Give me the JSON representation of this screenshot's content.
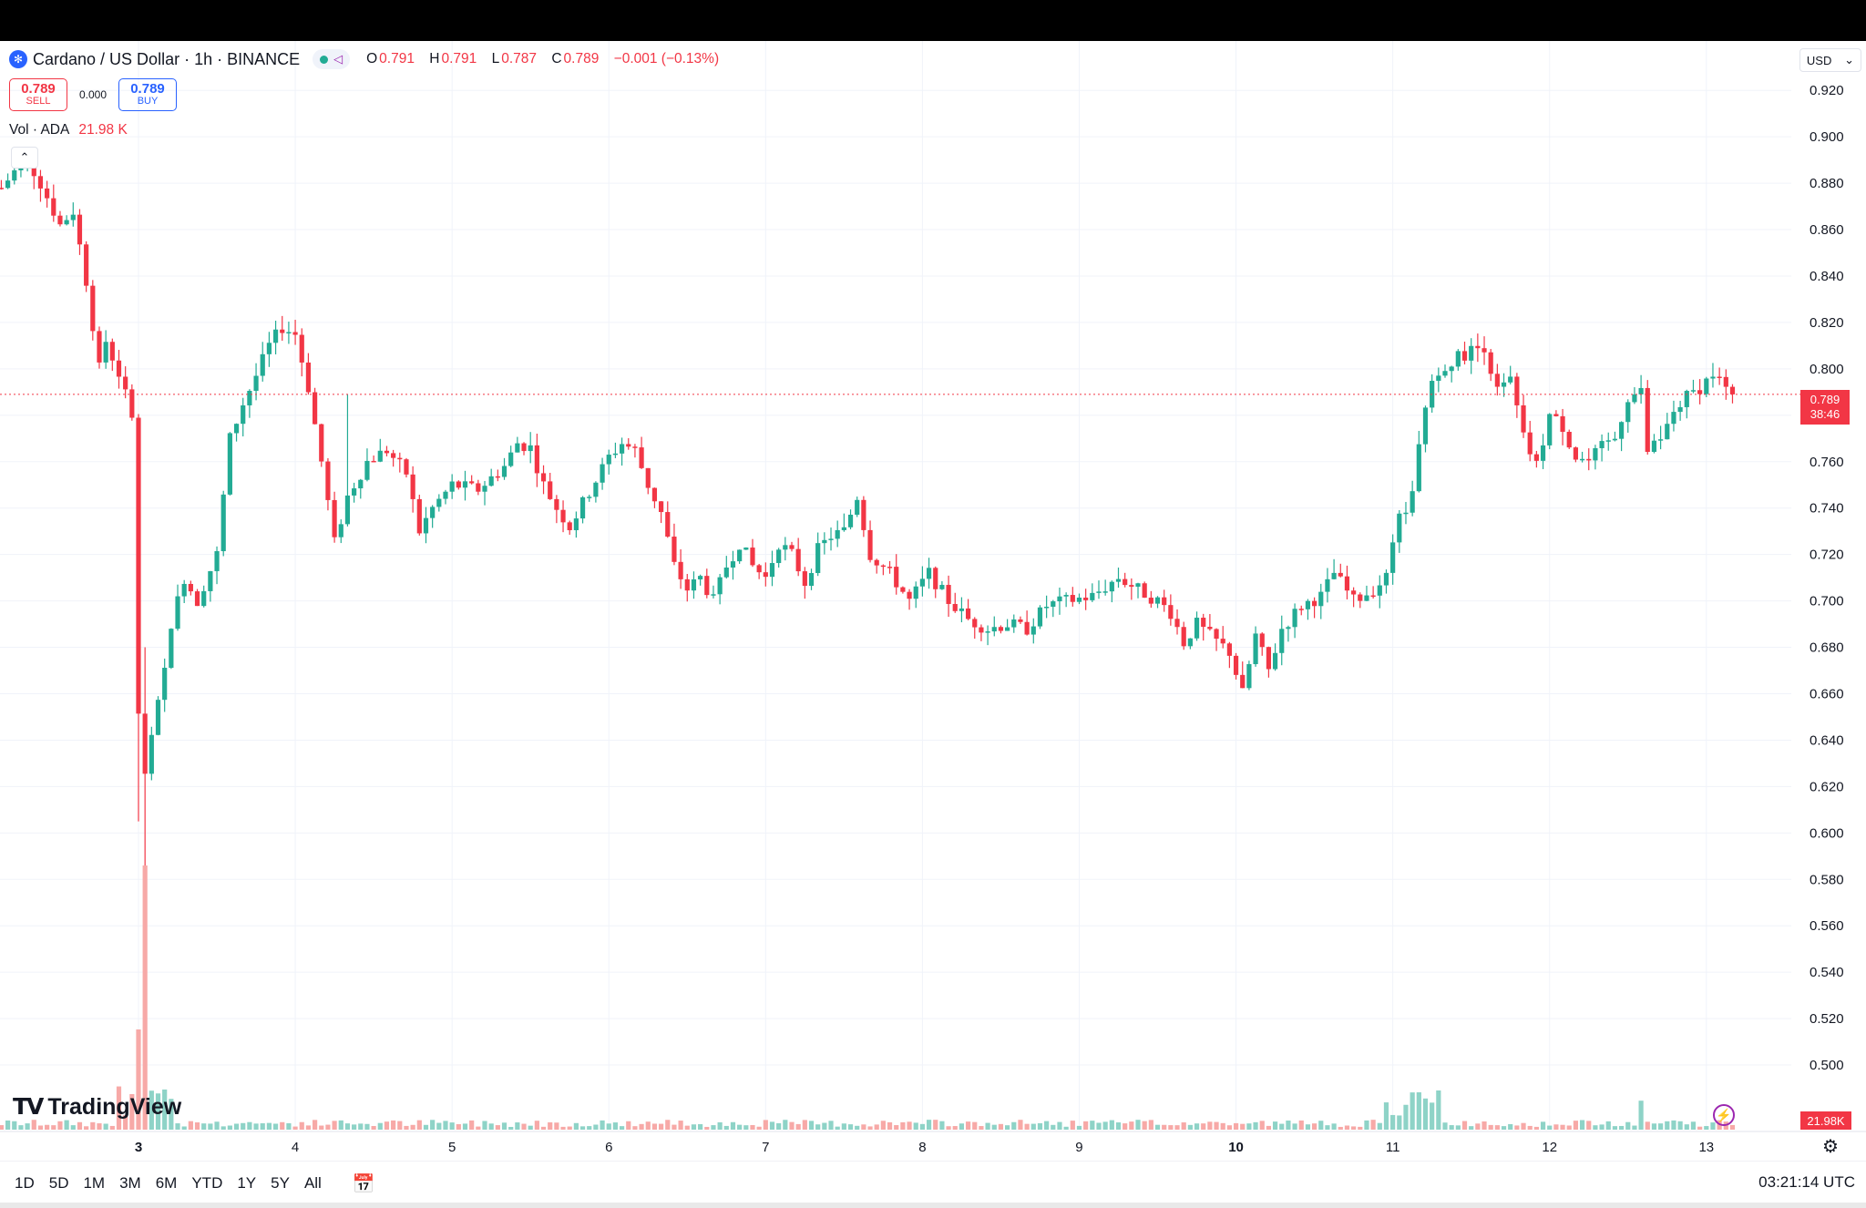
{
  "header": {
    "symbol": "Cardano / US Dollar · 1h · BINANCE",
    "ohlc": [
      {
        "k": "O",
        "v": "0.791"
      },
      {
        "k": "H",
        "v": "0.791"
      },
      {
        "k": "L",
        "v": "0.787"
      },
      {
        "k": "C",
        "v": "0.789"
      }
    ],
    "change": "−0.001 (−0.13%)"
  },
  "trade": {
    "sell_price": "0.789",
    "sell_label": "SELL",
    "spread": "0.000",
    "buy_price": "0.789",
    "buy_label": "BUY"
  },
  "volume_legend": {
    "label": "Vol · ADA",
    "value": "21.98 K"
  },
  "currency": "USD",
  "price_tag": {
    "price": "0.789",
    "countdown": "38:46"
  },
  "volume_tag": "21.98K",
  "brand": "TradingView",
  "ranges": [
    "1D",
    "5D",
    "1M",
    "3M",
    "6M",
    "YTD",
    "1Y",
    "5Y",
    "All"
  ],
  "time_utc": "03:21:14 UTC",
  "colors": {
    "up": "#22ab94",
    "down": "#f23645",
    "up_vol": "#8ed3c7",
    "down_vol": "#f7a9a7",
    "grid": "#f0f3fa"
  },
  "chart_data": {
    "type": "candlestick",
    "title": "Cardano / US Dollar · 1h · BINANCE",
    "ylim": [
      0.48,
      0.935
    ],
    "y_ticks": [
      "0.920",
      "0.900",
      "0.880",
      "0.860",
      "0.840",
      "0.820",
      "0.800",
      "0.780",
      "0.760",
      "0.740",
      "0.720",
      "0.700",
      "0.680",
      "0.660",
      "0.640",
      "0.620",
      "0.600",
      "0.580",
      "0.560",
      "0.540",
      "0.520",
      "0.500"
    ],
    "x_ticks": [
      {
        "label": "3",
        "t": 0,
        "bold": true
      },
      {
        "label": "4",
        "t": 24
      },
      {
        "label": "5",
        "t": 48
      },
      {
        "label": "6",
        "t": 72
      },
      {
        "label": "7",
        "t": 96
      },
      {
        "label": "8",
        "t": 120
      },
      {
        "label": "9",
        "t": 144
      },
      {
        "label": "10",
        "t": 168,
        "bold": true
      },
      {
        "label": "11",
        "t": 192
      },
      {
        "label": "12",
        "t": 216
      },
      {
        "label": "13",
        "t": 240
      }
    ],
    "start_t": -21,
    "last_price": 0.789,
    "volume_last": "21.98K",
    "ohlc_anchors": [
      [
        -21,
        0.878
      ],
      [
        -19,
        0.885
      ],
      [
        -17,
        0.89
      ],
      [
        -15,
        0.88
      ],
      [
        -12,
        0.862
      ],
      [
        -10,
        0.868
      ],
      [
        -8,
        0.838
      ],
      [
        -6,
        0.8
      ],
      [
        -5,
        0.812
      ],
      [
        -3,
        0.798
      ],
      [
        -1,
        0.78
      ],
      [
        0,
        0.65
      ],
      [
        1,
        0.625
      ],
      [
        2,
        0.64
      ],
      [
        4,
        0.67
      ],
      [
        5,
        0.69
      ],
      [
        7,
        0.71
      ],
      [
        9,
        0.7
      ],
      [
        12,
        0.72
      ],
      [
        14,
        0.77
      ],
      [
        16,
        0.785
      ],
      [
        18,
        0.797
      ],
      [
        20,
        0.81
      ],
      [
        22,
        0.818
      ],
      [
        24,
        0.815
      ],
      [
        26,
        0.792
      ],
      [
        28,
        0.76
      ],
      [
        30,
        0.725
      ],
      [
        32,
        0.745
      ],
      [
        35,
        0.76
      ],
      [
        38,
        0.765
      ],
      [
        41,
        0.755
      ],
      [
        43,
        0.73
      ],
      [
        45,
        0.74
      ],
      [
        48,
        0.75
      ],
      [
        52,
        0.748
      ],
      [
        56,
        0.758
      ],
      [
        58,
        0.768
      ],
      [
        60,
        0.766
      ],
      [
        62,
        0.75
      ],
      [
        64,
        0.74
      ],
      [
        66,
        0.732
      ],
      [
        68,
        0.742
      ],
      [
        70,
        0.752
      ],
      [
        72,
        0.762
      ],
      [
        74,
        0.768
      ],
      [
        76,
        0.765
      ],
      [
        78,
        0.75
      ],
      [
        80,
        0.738
      ],
      [
        82,
        0.715
      ],
      [
        84,
        0.705
      ],
      [
        86,
        0.71
      ],
      [
        88,
        0.7
      ],
      [
        90,
        0.715
      ],
      [
        92,
        0.725
      ],
      [
        94,
        0.715
      ],
      [
        96,
        0.71
      ],
      [
        98,
        0.725
      ],
      [
        100,
        0.72
      ],
      [
        102,
        0.708
      ],
      [
        104,
        0.722
      ],
      [
        106,
        0.728
      ],
      [
        108,
        0.73
      ],
      [
        110,
        0.745
      ],
      [
        112,
        0.72
      ],
      [
        115,
        0.712
      ],
      [
        118,
        0.7
      ],
      [
        121,
        0.712
      ],
      [
        124,
        0.7
      ],
      [
        127,
        0.692
      ],
      [
        130,
        0.688
      ],
      [
        133,
        0.69
      ],
      [
        136,
        0.688
      ],
      [
        139,
        0.698
      ],
      [
        142,
        0.7
      ],
      [
        146,
        0.702
      ],
      [
        150,
        0.71
      ],
      [
        153,
        0.705
      ],
      [
        156,
        0.7
      ],
      [
        158,
        0.695
      ],
      [
        160,
        0.682
      ],
      [
        162,
        0.69
      ],
      [
        164,
        0.685
      ],
      [
        167,
        0.678
      ],
      [
        169,
        0.66
      ],
      [
        171,
        0.685
      ],
      [
        173,
        0.67
      ],
      [
        175,
        0.688
      ],
      [
        178,
        0.698
      ],
      [
        181,
        0.702
      ],
      [
        183,
        0.712
      ],
      [
        186,
        0.7
      ],
      [
        189,
        0.705
      ],
      [
        191,
        0.71
      ],
      [
        193,
        0.735
      ],
      [
        195,
        0.745
      ],
      [
        197,
        0.785
      ],
      [
        199,
        0.8
      ],
      [
        202,
        0.805
      ],
      [
        204,
        0.808
      ],
      [
        206,
        0.81
      ],
      [
        208,
        0.79
      ],
      [
        210,
        0.795
      ],
      [
        212,
        0.77
      ],
      [
        214,
        0.758
      ],
      [
        216,
        0.78
      ],
      [
        218,
        0.775
      ],
      [
        220,
        0.762
      ],
      [
        222,
        0.76
      ],
      [
        224,
        0.766
      ],
      [
        226,
        0.77
      ],
      [
        228,
        0.788
      ],
      [
        230,
        0.79
      ],
      [
        231,
        0.765
      ],
      [
        233,
        0.768
      ],
      [
        235,
        0.782
      ],
      [
        237,
        0.788
      ],
      [
        239,
        0.792
      ],
      [
        241,
        0.798
      ],
      [
        243,
        0.792
      ],
      [
        244,
        0.789
      ]
    ]
  }
}
